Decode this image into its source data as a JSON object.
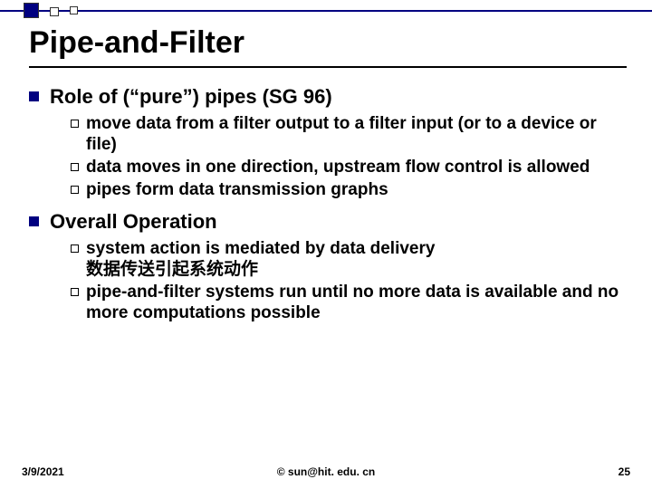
{
  "decor": {
    "line_color": "#000080",
    "sq_filled_color": "#000080",
    "sq_border_color": "#333333"
  },
  "title": "Pipe-and-Filter",
  "sections": [
    {
      "heading": "Role of (“pure”) pipes (SG 96)",
      "items": [
        {
          "text": "move data from a filter output to a filter input (or to a device or file)"
        },
        {
          "text": "data moves in one direction, upstream flow control is allowed"
        },
        {
          "text": "pipes form data transmission graphs"
        }
      ]
    },
    {
      "heading": "Overall Operation",
      "items": [
        {
          "text": "system action is mediated by data delivery",
          "subline": "数据传送引起系统动作"
        },
        {
          "text": "pipe-and-filter systems run until no more data is available and no more computations possible"
        }
      ]
    }
  ],
  "footer": {
    "date": "3/9/2021",
    "center": "© sun@hit. edu. cn",
    "page": "25"
  }
}
